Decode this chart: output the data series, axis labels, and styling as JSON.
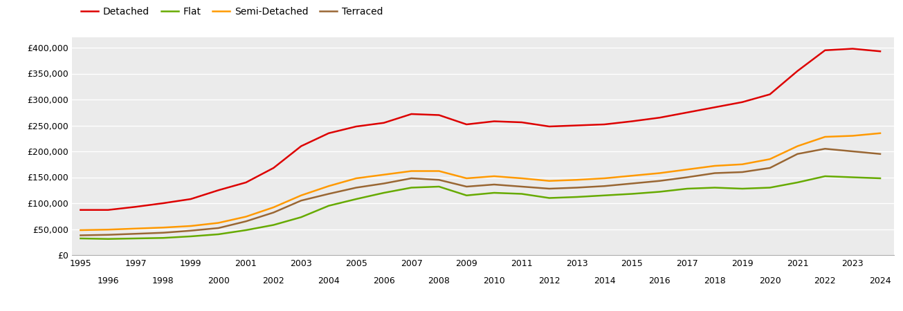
{
  "years": [
    1995,
    1996,
    1997,
    1998,
    1999,
    2000,
    2001,
    2002,
    2003,
    2004,
    2005,
    2006,
    2007,
    2008,
    2009,
    2010,
    2011,
    2012,
    2013,
    2014,
    2015,
    2016,
    2017,
    2018,
    2019,
    2020,
    2021,
    2022,
    2023,
    2024
  ],
  "detached": [
    87000,
    87000,
    93000,
    100000,
    108000,
    125000,
    140000,
    168000,
    210000,
    235000,
    248000,
    255000,
    272000,
    270000,
    252000,
    258000,
    256000,
    248000,
    250000,
    252000,
    258000,
    265000,
    275000,
    285000,
    295000,
    310000,
    355000,
    395000,
    398000,
    393000
  ],
  "flat": [
    32000,
    31000,
    32000,
    33000,
    36000,
    40000,
    48000,
    58000,
    73000,
    95000,
    108000,
    120000,
    130000,
    132000,
    115000,
    120000,
    118000,
    110000,
    112000,
    115000,
    118000,
    122000,
    128000,
    130000,
    128000,
    130000,
    140000,
    152000,
    150000,
    148000
  ],
  "semi_detached": [
    48000,
    49000,
    51000,
    53000,
    56000,
    62000,
    74000,
    92000,
    115000,
    133000,
    148000,
    155000,
    162000,
    162000,
    148000,
    152000,
    148000,
    143000,
    145000,
    148000,
    153000,
    158000,
    165000,
    172000,
    175000,
    185000,
    210000,
    228000,
    230000,
    235000
  ],
  "terraced": [
    38000,
    39000,
    41000,
    43000,
    47000,
    52000,
    65000,
    82000,
    105000,
    118000,
    130000,
    138000,
    148000,
    145000,
    132000,
    136000,
    132000,
    128000,
    130000,
    133000,
    138000,
    143000,
    150000,
    158000,
    160000,
    168000,
    195000,
    205000,
    200000,
    195000
  ],
  "colors": {
    "detached": "#dd0000",
    "flat": "#66aa00",
    "semi_detached": "#ff9900",
    "terraced": "#996633"
  },
  "ylim": [
    0,
    420000
  ],
  "yticks": [
    0,
    50000,
    100000,
    150000,
    200000,
    250000,
    300000,
    350000,
    400000
  ],
  "plot_bg_color": "#ebebeb",
  "fig_bg_color": "#ffffff",
  "grid_color": "#ffffff",
  "legend_labels": [
    "Detached",
    "Flat",
    "Semi-Detached",
    "Terraced"
  ],
  "xlim": [
    1994.7,
    2024.5
  ]
}
